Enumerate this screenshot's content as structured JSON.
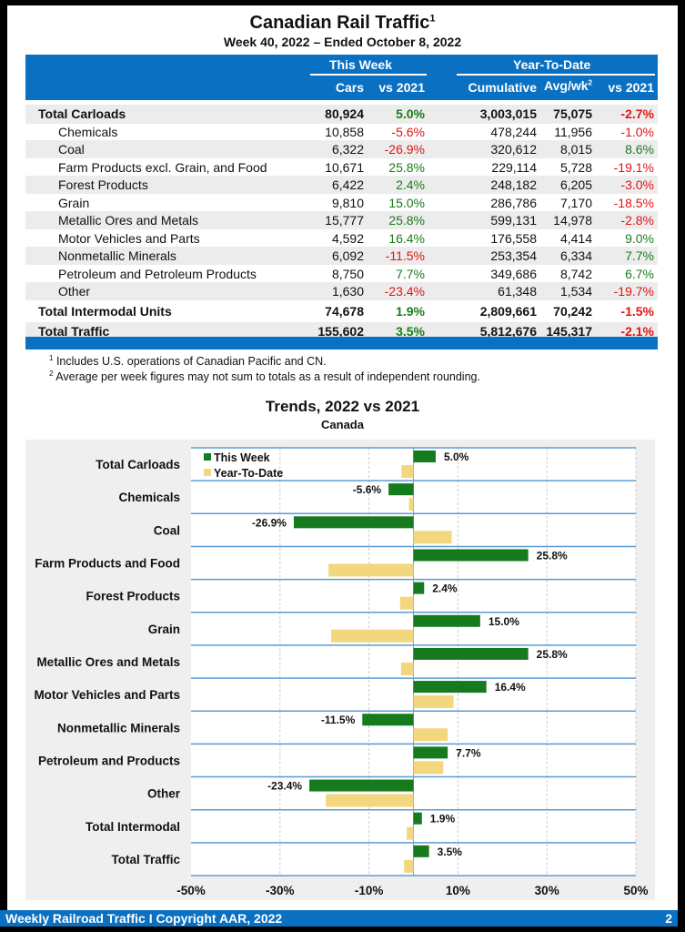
{
  "header": {
    "title": "Canadian Rail Traffic",
    "title_sup": "1",
    "subtitle": "Week 40, 2022 – Ended October 8, 2022"
  },
  "table": {
    "group_this_week": "This Week",
    "group_ytd": "Year-To-Date",
    "columns": [
      "Cars",
      "vs 2021",
      "Cumulative",
      "Avg/wk",
      "vs 2021"
    ],
    "avg_sup": "2",
    "rows": [
      {
        "label": "Total Carloads",
        "cars": "80,924",
        "vs": "5.0%",
        "cum": "3,003,015",
        "avg": "75,075",
        "ytd_vs": "-2.7%",
        "bold": true
      },
      {
        "label": "Chemicals",
        "cars": "10,858",
        "vs": "-5.6%",
        "cum": "478,244",
        "avg": "11,956",
        "ytd_vs": "-1.0%"
      },
      {
        "label": "Coal",
        "cars": "6,322",
        "vs": "-26.9%",
        "cum": "320,612",
        "avg": "8,015",
        "ytd_vs": "8.6%"
      },
      {
        "label": "Farm Products excl. Grain, and Food",
        "cars": "10,671",
        "vs": "25.8%",
        "cum": "229,114",
        "avg": "5,728",
        "ytd_vs": "-19.1%"
      },
      {
        "label": "Forest Products",
        "cars": "6,422",
        "vs": "2.4%",
        "cum": "248,182",
        "avg": "6,205",
        "ytd_vs": "-3.0%"
      },
      {
        "label": "Grain",
        "cars": "9,810",
        "vs": "15.0%",
        "cum": "286,786",
        "avg": "7,170",
        "ytd_vs": "-18.5%"
      },
      {
        "label": "Metallic Ores and Metals",
        "cars": "15,777",
        "vs": "25.8%",
        "cum": "599,131",
        "avg": "14,978",
        "ytd_vs": "-2.8%"
      },
      {
        "label": "Motor Vehicles and Parts",
        "cars": "4,592",
        "vs": "16.4%",
        "cum": "176,558",
        "avg": "4,414",
        "ytd_vs": "9.0%"
      },
      {
        "label": "Nonmetallic Minerals",
        "cars": "6,092",
        "vs": "-11.5%",
        "cum": "253,354",
        "avg": "6,334",
        "ytd_vs": "7.7%"
      },
      {
        "label": "Petroleum and Petroleum Products",
        "cars": "8,750",
        "vs": "7.7%",
        "cum": "349,686",
        "avg": "8,742",
        "ytd_vs": "6.7%"
      },
      {
        "label": "Other",
        "cars": "1,630",
        "vs": "-23.4%",
        "cum": "61,348",
        "avg": "1,534",
        "ytd_vs": "-19.7%"
      },
      {
        "label": "Total Intermodal Units",
        "cars": "74,678",
        "vs": "1.9%",
        "cum": "2,809,661",
        "avg": "70,242",
        "ytd_vs": "-1.5%",
        "bold": true
      },
      {
        "label": "Total Traffic",
        "cars": "155,602",
        "vs": "3.5%",
        "cum": "5,812,676",
        "avg": "145,317",
        "ytd_vs": "-2.1%",
        "bold": true
      }
    ]
  },
  "footnotes": [
    {
      "mark": "1",
      "text": "Includes U.S. operations of Canadian Pacific and CN."
    },
    {
      "mark": "2",
      "text": "Average per week figures may not sum to totals as a result of independent rounding."
    }
  ],
  "chart_data": {
    "type": "bar",
    "orientation": "horizontal",
    "title": "Trends, 2022 vs 2021",
    "subtitle": "Canada",
    "categories": [
      "Total Carloads",
      "Chemicals",
      "Coal",
      "Farm Products and Food",
      "Forest Products",
      "Grain",
      "Metallic Ores and Metals",
      "Motor Vehicles and Parts",
      "Nonmetallic Minerals",
      "Petroleum and Products",
      "Other",
      "Total Intermodal",
      "Total Traffic"
    ],
    "series": [
      {
        "name": "This Week",
        "color": "#167a1e",
        "values": [
          5.0,
          -5.6,
          -26.9,
          25.8,
          2.4,
          15.0,
          25.8,
          16.4,
          -11.5,
          7.7,
          -23.4,
          1.9,
          3.5
        ],
        "labels": [
          "5.0%",
          "-5.6%",
          "-26.9%",
          "25.8%",
          "2.4%",
          "15.0%",
          "25.8%",
          "16.4%",
          "-11.5%",
          "7.7%",
          "-23.4%",
          "1.9%",
          "3.5%"
        ]
      },
      {
        "name": "Year-To-Date",
        "color": "#f2d77e",
        "values": [
          -2.7,
          -1.0,
          8.6,
          -19.1,
          -3.0,
          -18.5,
          -2.8,
          9.0,
          7.7,
          6.7,
          -19.7,
          -1.5,
          -2.1
        ]
      }
    ],
    "xlim": [
      -50,
      50
    ],
    "xticks": [
      "-50%",
      "-30%",
      "-10%",
      "10%",
      "30%",
      "50%"
    ],
    "xtick_values": [
      -50,
      -30,
      -10,
      10,
      30,
      50
    ],
    "grid": true,
    "legend": "top-left"
  },
  "footer": {
    "text": "Weekly Railroad Traffic I Copyright AAR, 2022",
    "page": "2"
  }
}
